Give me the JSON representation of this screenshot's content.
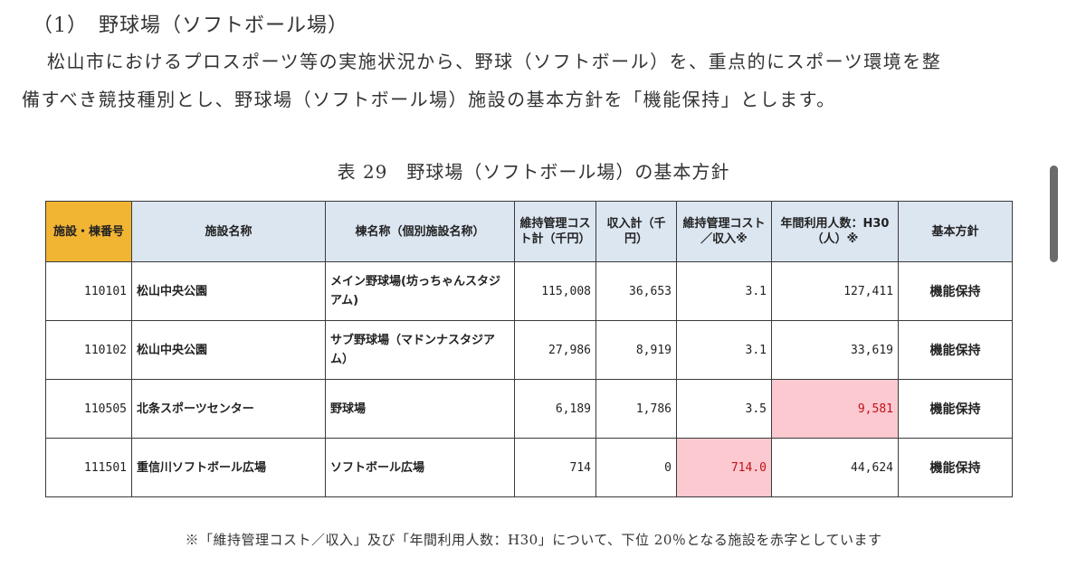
{
  "section": {
    "heading": "（1）　野球場（ソフトボール場）",
    "paragraph_line1": "松山市におけるプロスポーツ等の実施状況から、野球（ソフトボール）を、重点的にスポーツ環境を整",
    "paragraph_line2": "備すべき競技種別とし、野球場（ソフトボール場）施設の基本方針を「機能保持」とします。"
  },
  "table": {
    "caption": "表 29　野球場（ソフトボール場）の基本方針",
    "headers": {
      "facility_no": "施設・棟番号",
      "facility_name": "施設名称",
      "building_name": "棟名称（個別施設名称）",
      "cost": "維持管理コスト計（千円）",
      "income": "収入計（千円）",
      "cost_ratio": "維持管理コスト／収入※",
      "users": "年間利用人数：H30（人）※",
      "policy": "基本方針"
    },
    "rows": [
      {
        "no": "110101",
        "facility": "松山中央公園",
        "building": "メイン野球場(坊っちゃんスタジアム)",
        "cost": "115,008",
        "income": "36,653",
        "ratio": "3.1",
        "users": "127,411",
        "policy": "機能保持"
      },
      {
        "no": "110102",
        "facility": "松山中央公園",
        "building": "サブ野球場（マドンナスタジアム）",
        "cost": "27,986",
        "income": "8,919",
        "ratio": "3.1",
        "users": "33,619",
        "policy": "機能保持"
      },
      {
        "no": "110505",
        "facility": "北条スポーツセンター",
        "building": "野球場",
        "cost": "6,189",
        "income": "1,786",
        "ratio": "3.5",
        "users": "9,581",
        "policy": "機能保持"
      },
      {
        "no": "111501",
        "facility": "重信川ソフトボール広場",
        "building": "ソフトボール広場",
        "cost": "714",
        "income": "0",
        "ratio": "714.0",
        "users": "44,624",
        "policy": "機能保持"
      }
    ],
    "footnote": "※「維持管理コスト／収入」及び「年間利用人数：H30」について、下位 20％となる施設を赤字としています"
  },
  "colors": {
    "header_bg": "#dce6f1",
    "first_header_bg": "#f2b533",
    "highlight_bg": "#fbc9cf",
    "highlight_text": "#c0101c"
  }
}
